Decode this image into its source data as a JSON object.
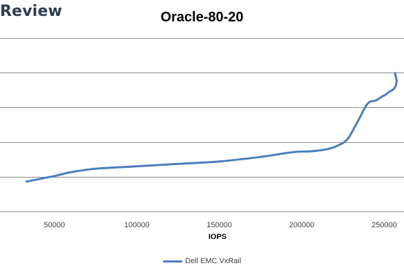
{
  "brand": {
    "text": "Review"
  },
  "chart_data": {
    "type": "line",
    "title": "Oracle-80-20",
    "xlabel": "IOPS",
    "ylabel": "",
    "xlim": [
      17000,
      262000
    ],
    "ylim": [
      0,
      5
    ],
    "x_ticks": [
      50000,
      100000,
      150000,
      200000,
      250000
    ],
    "x_tick_labels": [
      "50000",
      "100000",
      "150000",
      "200000",
      "250000"
    ],
    "y_gridlines": [
      1,
      2,
      3,
      4,
      5
    ],
    "y_tick_labels_visible": false,
    "grid": true,
    "legend_position": "bottom",
    "series": [
      {
        "name": "Dell EMC VxRail",
        "color": "#4a7ebb",
        "points": [
          [
            33000,
            0.86
          ],
          [
            50000,
            1.02
          ],
          [
            60000,
            1.13
          ],
          [
            75000,
            1.23
          ],
          [
            100000,
            1.3
          ],
          [
            125000,
            1.37
          ],
          [
            150000,
            1.44
          ],
          [
            175000,
            1.57
          ],
          [
            195000,
            1.71
          ],
          [
            205000,
            1.73
          ],
          [
            215000,
            1.79
          ],
          [
            222000,
            1.9
          ],
          [
            228000,
            2.1
          ],
          [
            234000,
            2.6
          ],
          [
            240000,
            3.11
          ],
          [
            245000,
            3.2
          ],
          [
            249000,
            3.32
          ],
          [
            251000,
            3.37
          ],
          [
            253000,
            3.45
          ],
          [
            256000,
            3.54
          ],
          [
            257500,
            3.74
          ],
          [
            256500,
            3.99
          ]
        ]
      }
    ]
  }
}
